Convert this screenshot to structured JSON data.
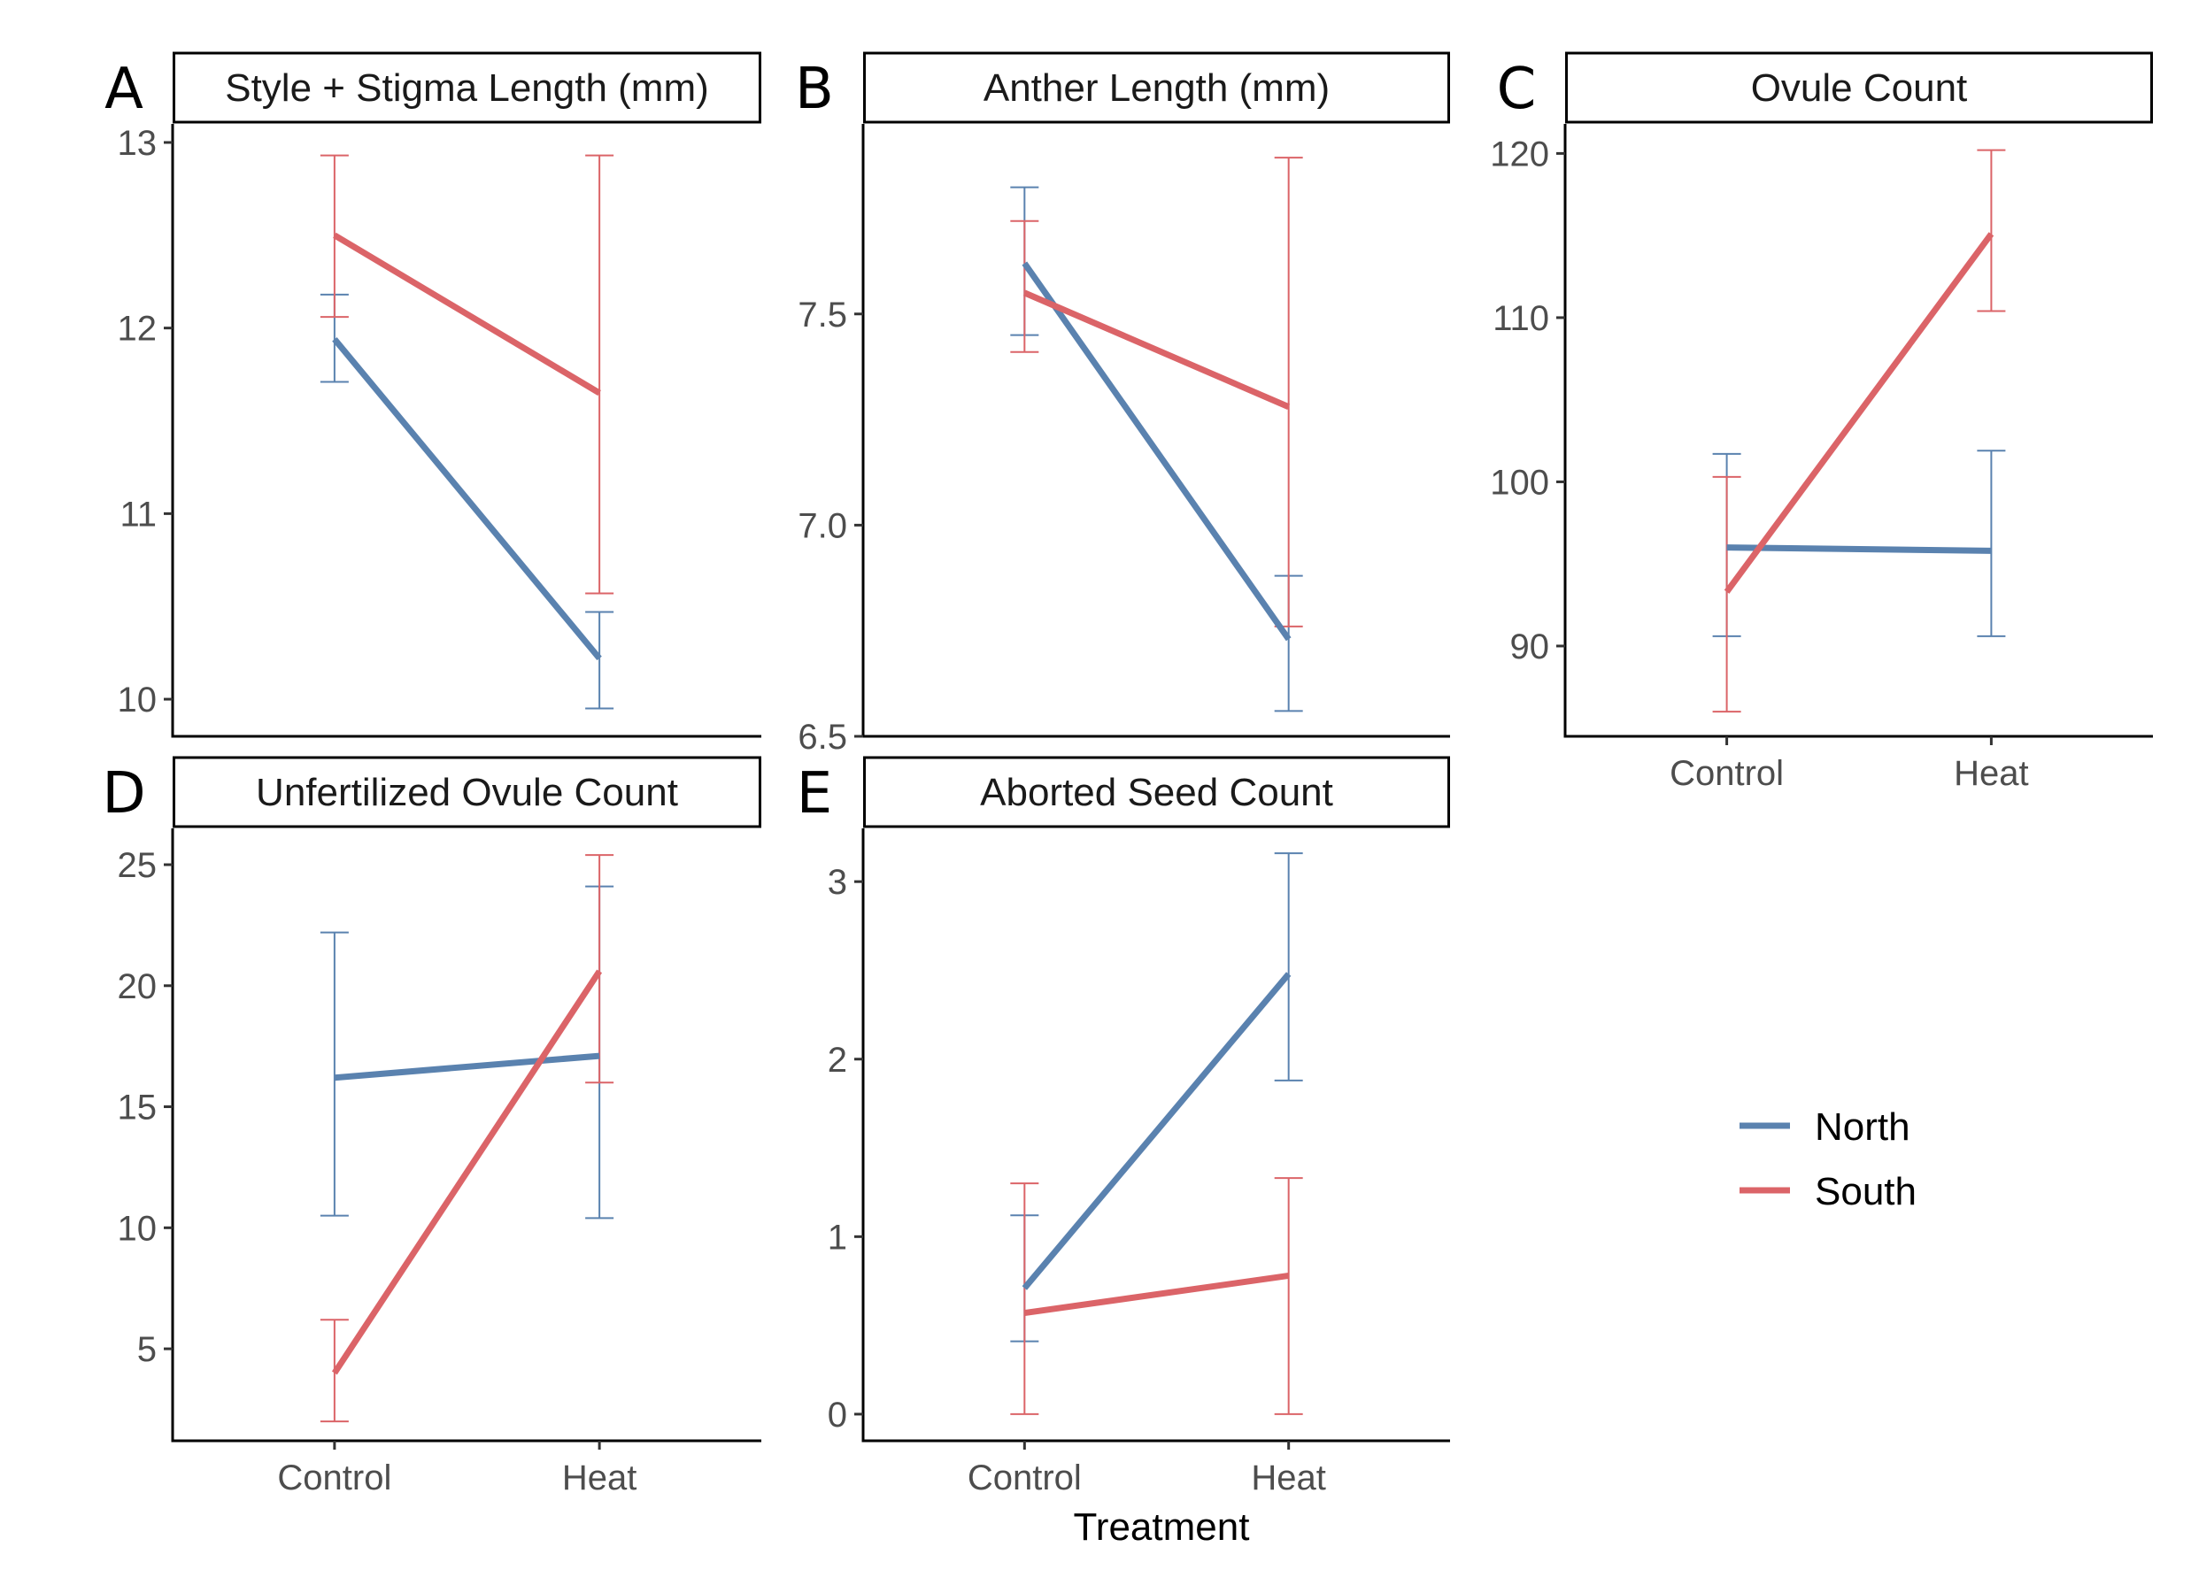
{
  "figure": {
    "xlabel": "Treatment",
    "legend": {
      "placement": "bottom-right",
      "entries": [
        {
          "name": "North",
          "color": "#5A82AF"
        },
        {
          "name": "South",
          "color": "#DB6468"
        }
      ]
    }
  },
  "chart_data": [
    {
      "type": "line",
      "letter": "A",
      "title": "Style + Stigma Length (mm)",
      "categories": [
        "Control",
        "Heat"
      ],
      "ylim": [
        9.8,
        13.1
      ],
      "yticks": [
        10,
        11,
        12,
        13
      ],
      "ytick_labels": [
        "10",
        "11",
        "12",
        "13"
      ],
      "show_xticks": false,
      "series": [
        {
          "name": "North",
          "color": "#5A82AF",
          "values": [
            11.94,
            10.22
          ],
          "lower": [
            11.71,
            9.95
          ],
          "upper": [
            12.18,
            10.47
          ]
        },
        {
          "name": "South",
          "color": "#DB6468",
          "values": [
            12.5,
            11.65
          ],
          "lower": [
            12.06,
            10.57
          ],
          "upper": [
            12.93,
            12.93
          ]
        }
      ]
    },
    {
      "type": "line",
      "letter": "B",
      "title": "Anther Length (mm)",
      "categories": [
        "Control",
        "Heat"
      ],
      "ylim": [
        6.5,
        7.95
      ],
      "yticks": [
        6.5,
        7.0,
        7.5
      ],
      "ytick_labels": [
        "6.5",
        "7.0",
        "7.5"
      ],
      "show_xticks": false,
      "series": [
        {
          "name": "North",
          "color": "#5A82AF",
          "values": [
            7.62,
            6.73
          ],
          "lower": [
            7.45,
            6.56
          ],
          "upper": [
            7.8,
            6.88
          ]
        },
        {
          "name": "South",
          "color": "#DB6468",
          "values": [
            7.55,
            7.28
          ],
          "lower": [
            7.41,
            6.76
          ],
          "upper": [
            7.72,
            7.87
          ]
        }
      ]
    },
    {
      "type": "line",
      "letter": "C",
      "title": "Ovule Count",
      "categories": [
        "Control",
        "Heat"
      ],
      "ylim": [
        84.5,
        121.8
      ],
      "yticks": [
        90,
        100,
        110,
        120
      ],
      "ytick_labels": [
        "90",
        "100",
        "110",
        "120"
      ],
      "show_xticks": true,
      "series": [
        {
          "name": "North",
          "color": "#5A82AF",
          "values": [
            96,
            95.8
          ],
          "lower": [
            90.6,
            90.6
          ],
          "upper": [
            101.7,
            101.9
          ]
        },
        {
          "name": "South",
          "color": "#DB6468",
          "values": [
            93.3,
            115.1
          ],
          "lower": [
            86,
            110.4
          ],
          "upper": [
            100.3,
            120.2
          ]
        }
      ]
    },
    {
      "type": "line",
      "letter": "D",
      "title": "Unfertilized Ovule Count",
      "categories": [
        "Control",
        "Heat"
      ],
      "ylim": [
        1.2,
        26.5
      ],
      "yticks": [
        5,
        10,
        15,
        20,
        25
      ],
      "ytick_labels": [
        "5",
        "10",
        "15",
        "20",
        "25"
      ],
      "show_xticks": true,
      "series": [
        {
          "name": "North",
          "color": "#5A82AF",
          "values": [
            16.2,
            17.1
          ],
          "lower": [
            10.5,
            10.4
          ],
          "upper": [
            22.2,
            24.1
          ]
        },
        {
          "name": "South",
          "color": "#DB6468",
          "values": [
            4.0,
            20.6
          ],
          "lower": [
            2.0,
            16.0
          ],
          "upper": [
            6.2,
            25.4
          ]
        }
      ]
    },
    {
      "type": "line",
      "letter": "E",
      "title": "Aborted Seed Count",
      "categories": [
        "Control",
        "Heat"
      ],
      "ylim": [
        -0.15,
        3.3
      ],
      "yticks": [
        0,
        1,
        2,
        3
      ],
      "ytick_labels": [
        "0",
        "1",
        "2",
        "3"
      ],
      "show_xticks": true,
      "series": [
        {
          "name": "North",
          "color": "#5A82AF",
          "values": [
            0.71,
            2.48
          ],
          "lower": [
            0.41,
            1.88
          ],
          "upper": [
            1.12,
            3.16
          ]
        },
        {
          "name": "South",
          "color": "#DB6468",
          "values": [
            0.57,
            0.78
          ],
          "lower": [
            0.0,
            0.0
          ],
          "upper": [
            1.3,
            1.33
          ]
        }
      ]
    }
  ]
}
